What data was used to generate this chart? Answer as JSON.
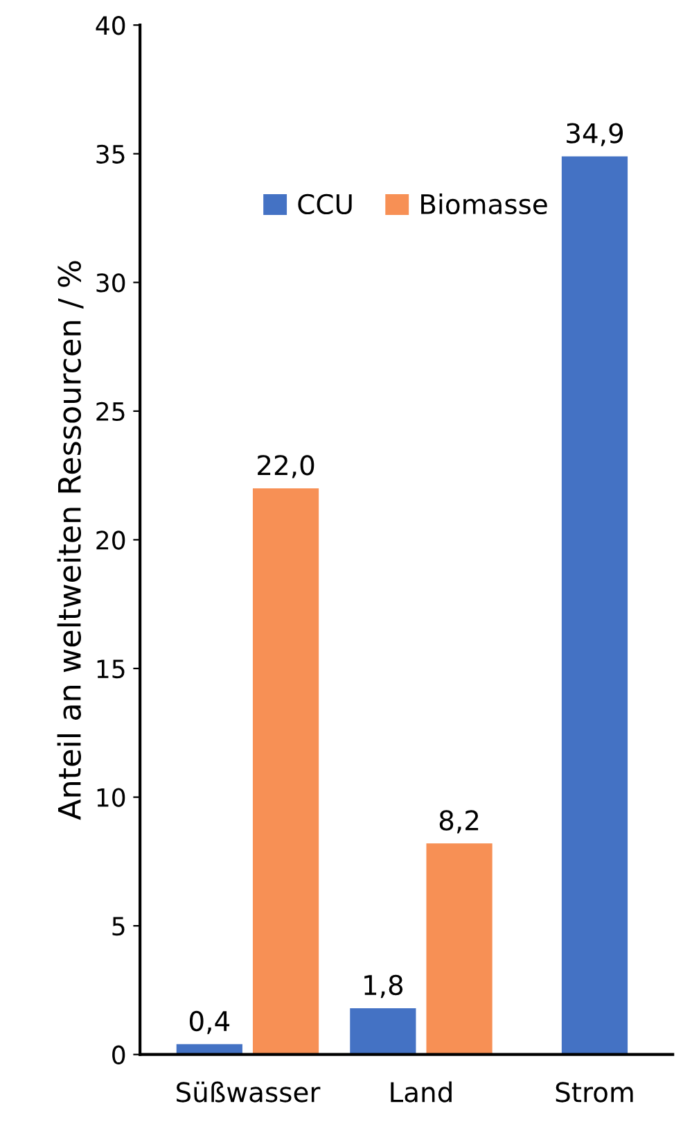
{
  "chart_data": {
    "type": "bar",
    "ylabel": "Anteil an weltweiten Ressourcen / %",
    "categories": [
      "Süßwasser",
      "Land",
      "Strom"
    ],
    "series": [
      {
        "name": "CCU",
        "color": "#4472c4",
        "values": [
          0.4,
          1.8,
          34.9
        ],
        "value_labels": [
          "0,4",
          "1,8",
          "34,9"
        ]
      },
      {
        "name": "Biomasse",
        "color": "#f79055",
        "values": [
          22.0,
          8.2,
          null
        ],
        "value_labels": [
          "22,0",
          "8,2",
          null
        ]
      }
    ],
    "ylim": [
      0,
      40
    ],
    "yticks": [
      0,
      5,
      10,
      15,
      20,
      25,
      30,
      35,
      40
    ],
    "grid": false,
    "legend": "top"
  }
}
